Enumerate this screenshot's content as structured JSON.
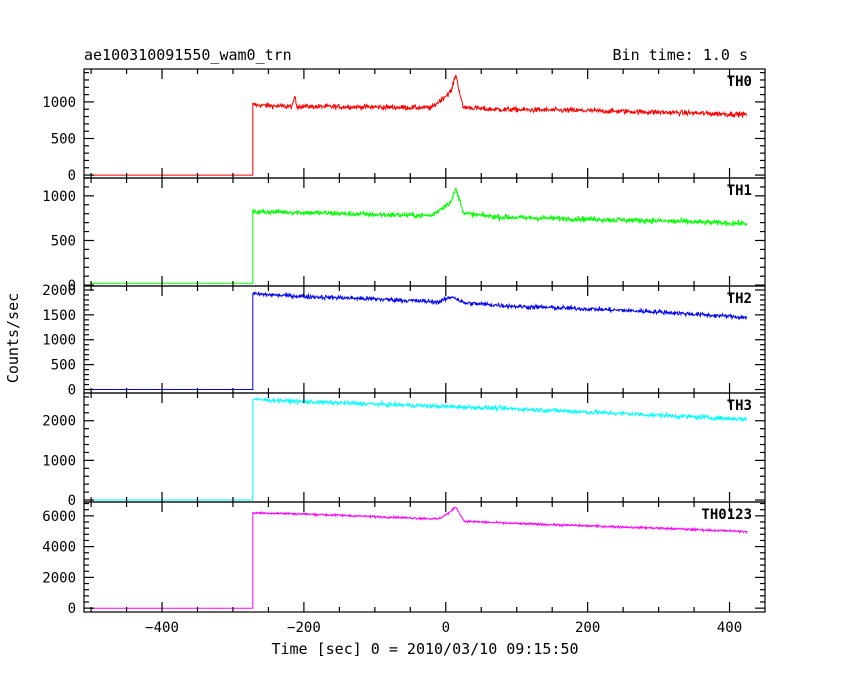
{
  "header": {
    "title": "ae100310091550_wam0_trn",
    "bin_time": "Bin time: 1.0 s"
  },
  "chart_data": {
    "type": "line",
    "xlabel": "Time [sec] 0 = 2010/03/10 09:15:50",
    "ylabel": "Counts/sec",
    "xlim": [
      -510,
      450
    ],
    "x_ticks": [
      -400,
      -200,
      0,
      200,
      400
    ],
    "panels": [
      {
        "name": "TH0",
        "color": "#ff0000",
        "ylim": [
          -40,
          1450
        ],
        "y_ticks": [
          0,
          500,
          1000
        ],
        "onset": -272,
        "pre_level": 0,
        "profile": [
          [
            -272,
            960
          ],
          [
            -230,
            940
          ],
          [
            -100,
            930
          ],
          [
            -20,
            920
          ],
          [
            8,
            1150
          ],
          [
            14,
            1380
          ],
          [
            24,
            930
          ],
          [
            60,
            900
          ],
          [
            200,
            880
          ],
          [
            300,
            860
          ],
          [
            420,
            830
          ]
        ],
        "bumps": [
          [
            -213,
            150,
            3
          ]
        ],
        "noise": 38
      },
      {
        "name": "TH1",
        "color": "#00ff00",
        "ylim": [
          -10,
          1200
        ],
        "y_ticks": [
          0,
          500,
          1000
        ],
        "onset": -272,
        "pre_level": 20,
        "profile": [
          [
            -272,
            820
          ],
          [
            -230,
            820
          ],
          [
            -100,
            790
          ],
          [
            -20,
            780
          ],
          [
            8,
            940
          ],
          [
            14,
            1080
          ],
          [
            26,
            800
          ],
          [
            80,
            760
          ],
          [
            200,
            740
          ],
          [
            300,
            720
          ],
          [
            420,
            690
          ]
        ],
        "bumps": [],
        "noise": 32
      },
      {
        "name": "TH2",
        "color": "#0000ff",
        "ylim": [
          -70,
          2080
        ],
        "y_ticks": [
          0,
          500,
          1000,
          1500,
          2000
        ],
        "onset": -272,
        "pre_level": 0,
        "profile": [
          [
            -272,
            1920
          ],
          [
            -200,
            1870
          ],
          [
            -100,
            1820
          ],
          [
            -10,
            1760
          ],
          [
            10,
            1870
          ],
          [
            25,
            1740
          ],
          [
            100,
            1670
          ],
          [
            200,
            1620
          ],
          [
            300,
            1560
          ],
          [
            420,
            1450
          ]
        ],
        "bumps": [],
        "noise": 48
      },
      {
        "name": "TH3",
        "color": "#00ffff",
        "ylim": [
          -50,
          2700
        ],
        "y_ticks": [
          0,
          1000,
          2000
        ],
        "onset": -272,
        "pre_level": 0,
        "profile": [
          [
            -272,
            2540
          ],
          [
            -200,
            2480
          ],
          [
            -100,
            2420
          ],
          [
            0,
            2360
          ],
          [
            100,
            2300
          ],
          [
            200,
            2220
          ],
          [
            300,
            2140
          ],
          [
            420,
            2040
          ]
        ],
        "bumps": [],
        "noise": 60
      },
      {
        "name": "TH0123",
        "color": "#ff00ff",
        "ylim": [
          -250,
          6900
        ],
        "y_ticks": [
          0,
          2000,
          4000,
          6000
        ],
        "onset": -272,
        "pre_level": 0,
        "profile": [
          [
            -272,
            6200
          ],
          [
            -200,
            6120
          ],
          [
            -100,
            5950
          ],
          [
            -10,
            5800
          ],
          [
            8,
            6300
          ],
          [
            14,
            6600
          ],
          [
            26,
            5650
          ],
          [
            100,
            5500
          ],
          [
            200,
            5350
          ],
          [
            300,
            5200
          ],
          [
            420,
            4980
          ]
        ],
        "bumps": [],
        "noise": 75
      }
    ]
  }
}
